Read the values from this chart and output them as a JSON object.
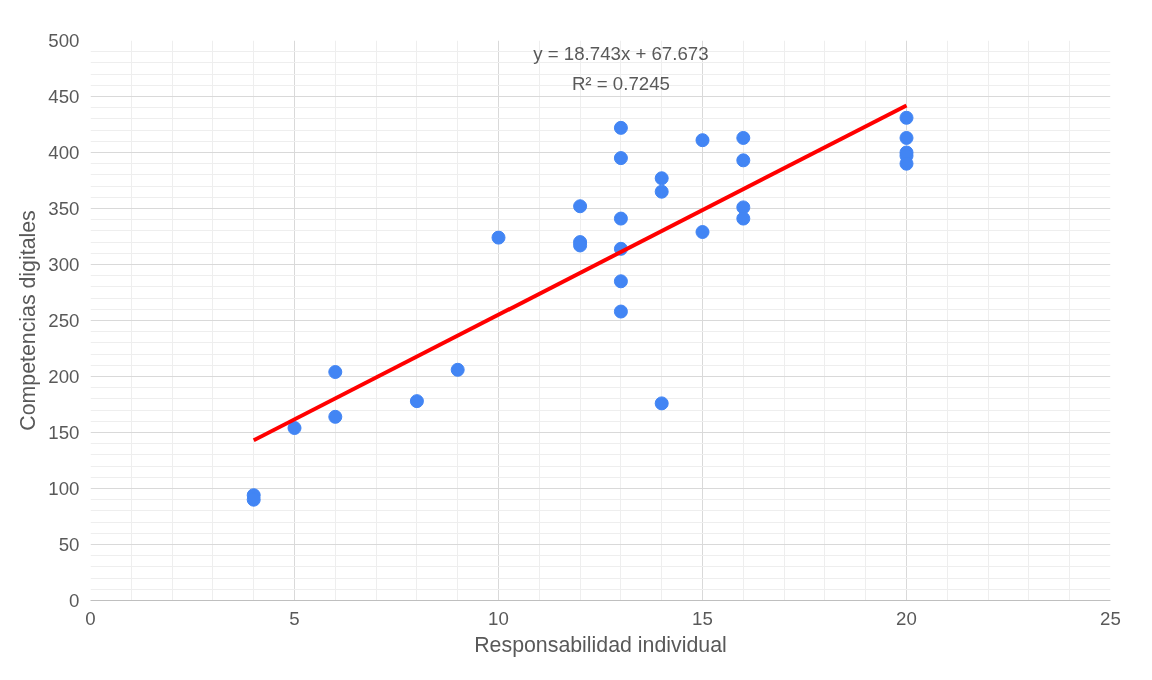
{
  "chart_data": {
    "type": "scatter",
    "xlabel": "Responsabilidad individual",
    "ylabel": "Competencias digitales",
    "xlim": [
      0,
      25
    ],
    "xticks": [
      0,
      5,
      10,
      15,
      20,
      25
    ],
    "ylim": [
      0,
      500
    ],
    "yticks": [
      0,
      50,
      100,
      150,
      200,
      250,
      300,
      350,
      400,
      450,
      500
    ],
    "grid": true,
    "annotations": [
      "y = 18.743x + 67.673",
      "R² = 0.7245"
    ],
    "series": [
      {
        "marker": "circle",
        "color": "#4285f4",
        "x": [
          4,
          4,
          5,
          6,
          6,
          8,
          9,
          10,
          12,
          12,
          12,
          13,
          13,
          13,
          13,
          13,
          13,
          14,
          14,
          14,
          15,
          15,
          16,
          16,
          16,
          16,
          20,
          20,
          20,
          20,
          20
        ],
        "values": [
          94,
          90,
          154,
          204,
          164,
          178,
          206,
          324,
          352,
          320,
          317,
          422,
          395,
          341,
          314,
          285,
          258,
          377,
          365,
          176,
          411,
          329,
          413,
          393,
          351,
          341,
          431,
          413,
          400,
          397,
          390
        ]
      },
      {
        "type": "line",
        "color": "#ff0000",
        "line_style": "solid",
        "x": [
          4,
          20
        ],
        "values": [
          143,
          442
        ]
      }
    ]
  }
}
